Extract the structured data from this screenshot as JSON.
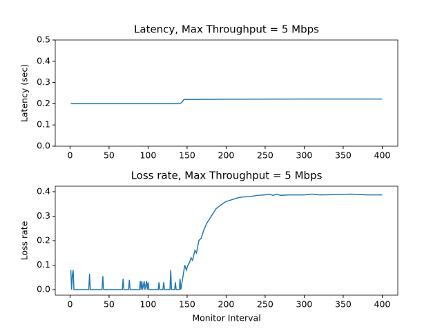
{
  "chart_data": [
    {
      "type": "line",
      "title": "Latency, Max Throughput = 5 Mbps",
      "ylabel": "Latency (sec)",
      "color": "#1f77b4",
      "x": [
        1,
        140,
        143,
        146,
        200,
        300,
        400
      ],
      "values": [
        0.2,
        0.2,
        0.205,
        0.22,
        0.221,
        0.222,
        0.222
      ],
      "xlim": [
        -18.95,
        419.95
      ],
      "xticks": [
        0,
        50,
        100,
        150,
        200,
        250,
        300,
        350,
        400
      ],
      "ylim": [
        0,
        0.5
      ],
      "yticks": [
        {
          "value": 0,
          "label": "0.0"
        },
        0.1,
        0.2,
        0.3,
        0.4,
        0.5
      ]
    },
    {
      "type": "line",
      "title": "Loss rate, Max Throughput = 5 Mbps",
      "ylabel": "Loss rate",
      "xlabel": "Monitor Interval",
      "color": "#1f77b4",
      "x": [
        1,
        2,
        3,
        4,
        5,
        24,
        25,
        26,
        41,
        42,
        43,
        67,
        68,
        69,
        75,
        76,
        77,
        89,
        90,
        91,
        92,
        93,
        95,
        96,
        98,
        99,
        100,
        101,
        113,
        114,
        115,
        119,
        120,
        121,
        128,
        129,
        130,
        134,
        135,
        136,
        140,
        141,
        142,
        144,
        145,
        147,
        149,
        151,
        153,
        155,
        157,
        160,
        162,
        165,
        168,
        171,
        175,
        179,
        183,
        187,
        191,
        195,
        200,
        205,
        210,
        215,
        220,
        230,
        240,
        250,
        255,
        260,
        265,
        270,
        280,
        300,
        310,
        320,
        340,
        360,
        380,
        400
      ],
      "values": [
        0.08,
        0,
        0.06,
        0.08,
        0,
        0,
        0.065,
        0,
        0,
        0.055,
        0,
        0,
        0.045,
        0,
        0,
        0.04,
        0,
        0,
        0.035,
        0,
        0.035,
        0,
        0.035,
        0,
        0.035,
        0,
        0.03,
        0,
        0,
        0.03,
        0,
        0,
        0.03,
        0,
        0,
        0.08,
        0,
        0,
        0.03,
        0,
        0,
        0.045,
        0,
        0.04,
        0.06,
        0.1,
        0.08,
        0.1,
        0.11,
        0.13,
        0.12,
        0.16,
        0.15,
        0.2,
        0.21,
        0.24,
        0.27,
        0.29,
        0.31,
        0.33,
        0.34,
        0.35,
        0.36,
        0.365,
        0.37,
        0.375,
        0.378,
        0.38,
        0.385,
        0.387,
        0.39,
        0.385,
        0.39,
        0.385,
        0.387,
        0.387,
        0.39,
        0.387,
        0.388,
        0.39,
        0.387,
        0.387
      ],
      "xlim": [
        -18.95,
        419.95
      ],
      "xticks": [
        0,
        50,
        100,
        150,
        200,
        250,
        300,
        350,
        400
      ],
      "ylim": [
        -0.0225,
        0.4225
      ],
      "yticks": [
        {
          "value": 0,
          "label": "0.0"
        },
        0.1,
        0.2,
        0.3,
        0.4
      ]
    }
  ]
}
